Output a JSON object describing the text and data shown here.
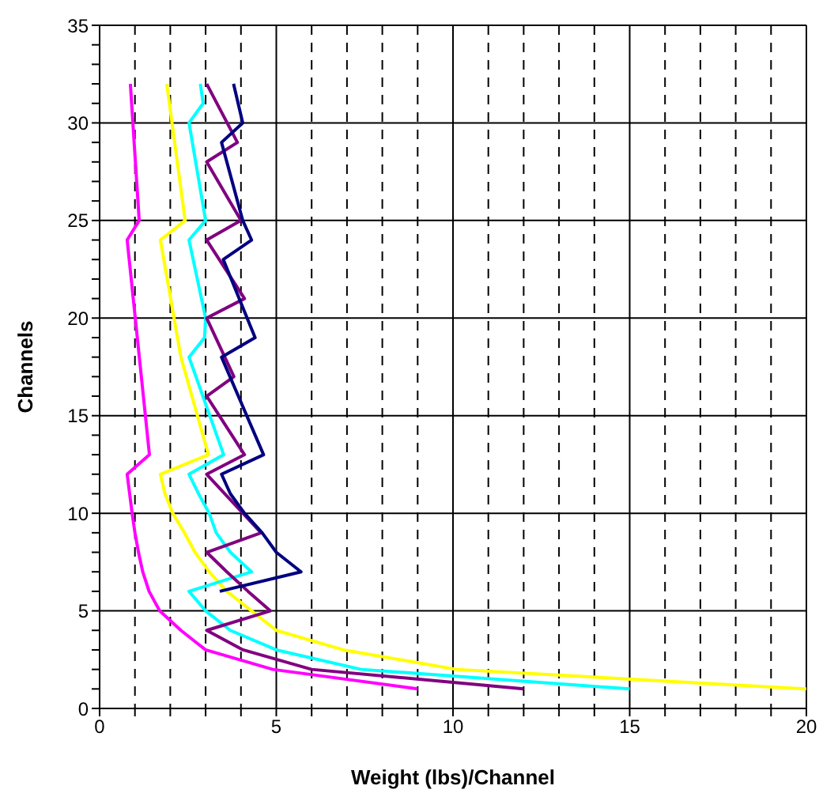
{
  "chart_data": {
    "type": "line",
    "xlabel": "Weight (lbs)/Channel",
    "ylabel": "Channels",
    "xlim": [
      0,
      20
    ],
    "ylim": [
      0,
      35
    ],
    "xticks": [
      0,
      {
        "value": 1,
        "label": null
      },
      {
        "value": 2,
        "label": null
      },
      {
        "value": 3,
        "label": null
      },
      {
        "value": 4,
        "label": null
      },
      5,
      {
        "value": 6,
        "label": null
      },
      {
        "value": 7,
        "label": null
      },
      {
        "value": 8,
        "label": null
      },
      {
        "value": 9,
        "label": null
      },
      10,
      {
        "value": 11,
        "label": null
      },
      {
        "value": 12,
        "label": null
      },
      {
        "value": 13,
        "label": null
      },
      {
        "value": 14,
        "label": null
      },
      15,
      {
        "value": 16,
        "label": null
      },
      {
        "value": 17,
        "label": null
      },
      {
        "value": 18,
        "label": null
      },
      {
        "value": 19,
        "label": null
      },
      20
    ],
    "yticks": [
      0,
      {
        "value": 1,
        "label": null
      },
      {
        "value": 2,
        "label": null
      },
      {
        "value": 3,
        "label": null
      },
      {
        "value": 4,
        "label": null
      },
      5,
      {
        "value": 6,
        "label": null
      },
      {
        "value": 7,
        "label": null
      },
      {
        "value": 8,
        "label": null
      },
      {
        "value": 9,
        "label": null
      },
      10,
      {
        "value": 11,
        "label": null
      },
      {
        "value": 12,
        "label": null
      },
      {
        "value": 13,
        "label": null
      },
      {
        "value": 14,
        "label": null
      },
      15,
      {
        "value": 16,
        "label": null
      },
      {
        "value": 17,
        "label": null
      },
      {
        "value": 18,
        "label": null
      },
      {
        "value": 19,
        "label": null
      },
      20,
      {
        "value": 21,
        "label": null
      },
      {
        "value": 22,
        "label": null
      },
      {
        "value": 23,
        "label": null
      },
      {
        "value": 24,
        "label": null
      },
      25,
      {
        "value": 26,
        "label": null
      },
      {
        "value": 27,
        "label": null
      },
      {
        "value": 28,
        "label": null
      },
      {
        "value": 29,
        "label": null
      },
      30,
      {
        "value": 31,
        "label": null
      },
      {
        "value": 32,
        "label": null
      },
      {
        "value": 33,
        "label": null
      },
      {
        "value": 34,
        "label": null
      },
      35
    ],
    "grid": true,
    "marker": "none",
    "line_style": "solid",
    "series": [
      {
        "color": "#ff00ff",
        "x": [
          9,
          4.9,
          3.0,
          2.3,
          1.7,
          1.4,
          1.22,
          1.1,
          1.0,
          0.92,
          0.85,
          0.78,
          1.41,
          0.78,
          1.12,
          0.87
        ],
        "values": [
          1,
          2,
          3,
          4,
          5,
          6,
          7,
          8,
          9,
          10,
          11,
          12,
          13,
          24,
          25,
          32
        ]
      },
      {
        "color": "#ffff00",
        "x": [
          20,
          10.1,
          6.9,
          5.0,
          4.3,
          3.6,
          3.1,
          2.7,
          2.4,
          2.07,
          1.85,
          1.72,
          3.08,
          2.3,
          1.72,
          2.42,
          1.9
        ],
        "values": [
          1,
          2,
          3,
          4,
          5,
          6,
          7,
          8,
          9,
          10,
          11,
          12,
          13,
          18,
          24,
          25,
          32
        ]
      },
      {
        "color": "#00ffff",
        "x": [
          15,
          7.4,
          5.0,
          3.7,
          3.0,
          2.53,
          4.3,
          3.7,
          3.3,
          3.1,
          2.8,
          2.53,
          3.51,
          2.53,
          2.97,
          3.0,
          2.53,
          3.0,
          2.53,
          2.93,
          2.85
        ],
        "values": [
          1,
          2,
          3,
          4,
          5,
          6,
          7,
          8,
          9,
          10,
          11,
          12,
          13,
          18,
          19,
          20,
          24,
          25,
          30,
          31,
          32
        ]
      },
      {
        "color": "#800080",
        "x": [
          12,
          6.0,
          4.06,
          3.03,
          4.83,
          4.2,
          3.6,
          3.03,
          4.57,
          3.03,
          4.1,
          3.03,
          3.8,
          3.03,
          4.1,
          3.03,
          4.0,
          3.03,
          3.9,
          3.03
        ],
        "values": [
          1,
          2,
          3,
          4,
          5,
          6,
          7,
          8,
          9,
          12,
          13,
          16,
          17,
          20,
          21,
          24,
          25,
          28,
          29,
          32
        ]
      },
      {
        "color": "#000080",
        "x": [
          3.4,
          5.7,
          5.0,
          4.6,
          4.1,
          3.7,
          3.45,
          4.64,
          3.45,
          4.4,
          3.5,
          4.3,
          4.05,
          3.45,
          4.05,
          3.79
        ],
        "values": [
          6,
          7,
          8,
          9,
          10,
          11,
          12,
          13,
          18,
          19,
          23,
          24,
          25,
          29,
          30,
          32
        ]
      }
    ]
  }
}
